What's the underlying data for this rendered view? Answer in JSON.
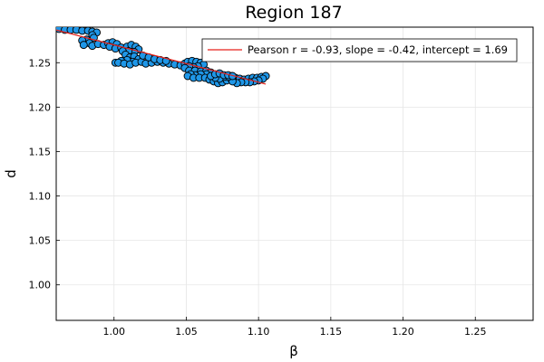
{
  "chart_data": {
    "type": "scatter",
    "title": "Region 187",
    "xlabel": "β",
    "ylabel": "d",
    "xlim": [
      0.96,
      1.29
    ],
    "ylim": [
      0.96,
      1.29
    ],
    "x_ticks": [
      1.0,
      1.05,
      1.1,
      1.15,
      1.2,
      1.25
    ],
    "x_tick_labels": [
      "1.00",
      "1.05",
      "1.10",
      "1.15",
      "1.20",
      "1.25"
    ],
    "y_ticks": [
      1.0,
      1.05,
      1.1,
      1.15,
      1.2,
      1.25
    ],
    "y_tick_labels": [
      "1.00",
      "1.05",
      "1.10",
      "1.15",
      "1.20",
      "1.25"
    ],
    "grid": true,
    "legend_position": "top-right",
    "fit_line": {
      "label": "Pearson r = -0.93, slope = -0.42, intercept = 1.69",
      "slope": -0.42,
      "intercept": 1.69,
      "x_range": [
        0.96,
        1.105
      ],
      "color": "#e8211a"
    },
    "scatter_color": "#1f97e8",
    "series": [
      {
        "points": [
          [
            0.962,
            1.288
          ],
          [
            0.966,
            1.287
          ],
          [
            0.97,
            1.287
          ],
          [
            0.974,
            1.287
          ],
          [
            0.978,
            1.286
          ],
          [
            0.982,
            1.286
          ],
          [
            0.985,
            1.285
          ],
          [
            0.988,
            1.284
          ],
          [
            0.985,
            1.281
          ],
          [
            0.986,
            1.278
          ],
          [
            0.981,
            1.276
          ],
          [
            0.978,
            1.275
          ],
          [
            0.983,
            1.272
          ],
          [
            0.979,
            1.27
          ],
          [
            0.985,
            1.269
          ],
          [
            0.989,
            1.271
          ],
          [
            0.993,
            1.27
          ],
          [
            0.996,
            1.272
          ],
          [
            0.999,
            1.273
          ],
          [
            1.002,
            1.271
          ],
          [
            0.997,
            1.268
          ],
          [
            1.001,
            1.266
          ],
          [
            1.005,
            1.267
          ],
          [
            1.009,
            1.268
          ],
          [
            1.012,
            1.27
          ],
          [
            1.015,
            1.268
          ],
          [
            1.017,
            1.265
          ],
          [
            1.014,
            1.262
          ],
          [
            1.01,
            1.263
          ],
          [
            1.006,
            1.263
          ],
          [
            1.008,
            1.259
          ],
          [
            1.011,
            1.256
          ],
          [
            1.014,
            1.257
          ],
          [
            1.017,
            1.254
          ],
          [
            1.013,
            1.251
          ],
          [
            1.009,
            1.253
          ],
          [
            1.005,
            1.252
          ],
          [
            1.001,
            1.25
          ],
          [
            1.003,
            1.25
          ],
          [
            1.007,
            1.249
          ],
          [
            1.011,
            1.248
          ],
          [
            1.015,
            1.25
          ],
          [
            1.019,
            1.251
          ],
          [
            1.022,
            1.249
          ],
          [
            1.026,
            1.25
          ],
          [
            1.03,
            1.251
          ],
          [
            1.034,
            1.25
          ],
          [
            1.038,
            1.249
          ],
          [
            1.042,
            1.248
          ],
          [
            1.046,
            1.247
          ],
          [
            1.049,
            1.249
          ],
          [
            1.051,
            1.251
          ],
          [
            1.054,
            1.252
          ],
          [
            1.057,
            1.251
          ],
          [
            1.06,
            1.25
          ],
          [
            1.062,
            1.248
          ],
          [
            1.058,
            1.246
          ],
          [
            1.055,
            1.245
          ],
          [
            1.052,
            1.246
          ],
          [
            1.049,
            1.244
          ],
          [
            1.052,
            1.241
          ],
          [
            1.056,
            1.241
          ],
          [
            1.06,
            1.24
          ],
          [
            1.064,
            1.241
          ],
          [
            1.067,
            1.239
          ],
          [
            1.064,
            1.237
          ],
          [
            1.06,
            1.237
          ],
          [
            1.056,
            1.236
          ],
          [
            1.053,
            1.237
          ],
          [
            1.051,
            1.235
          ],
          [
            1.055,
            1.233
          ],
          [
            1.059,
            1.233
          ],
          [
            1.063,
            1.233
          ],
          [
            1.066,
            1.231
          ],
          [
            1.069,
            1.229
          ],
          [
            1.072,
            1.227
          ],
          [
            1.075,
            1.228
          ],
          [
            1.078,
            1.23
          ],
          [
            1.081,
            1.232
          ],
          [
            1.084,
            1.233
          ],
          [
            1.087,
            1.232
          ],
          [
            1.09,
            1.231
          ],
          [
            1.093,
            1.232
          ],
          [
            1.096,
            1.233
          ],
          [
            1.099,
            1.233
          ],
          [
            1.102,
            1.234
          ],
          [
            1.105,
            1.235
          ],
          [
            1.103,
            1.232
          ],
          [
            1.1,
            1.23
          ],
          [
            1.097,
            1.229
          ],
          [
            1.094,
            1.228
          ],
          [
            1.091,
            1.228
          ],
          [
            1.088,
            1.228
          ],
          [
            1.085,
            1.227
          ],
          [
            1.082,
            1.229
          ],
          [
            1.079,
            1.234
          ],
          [
            1.076,
            1.234
          ],
          [
            1.073,
            1.232
          ],
          [
            1.07,
            1.233
          ],
          [
            1.067,
            1.235
          ],
          [
            1.07,
            1.237
          ],
          [
            1.073,
            1.238
          ],
          [
            1.076,
            1.236
          ],
          [
            1.079,
            1.236
          ],
          [
            1.082,
            1.235
          ],
          [
            1.02,
            1.258
          ],
          [
            1.024,
            1.256
          ],
          [
            1.028,
            1.254
          ],
          [
            1.032,
            1.253
          ],
          [
            1.036,
            1.252
          ]
        ]
      }
    ]
  }
}
